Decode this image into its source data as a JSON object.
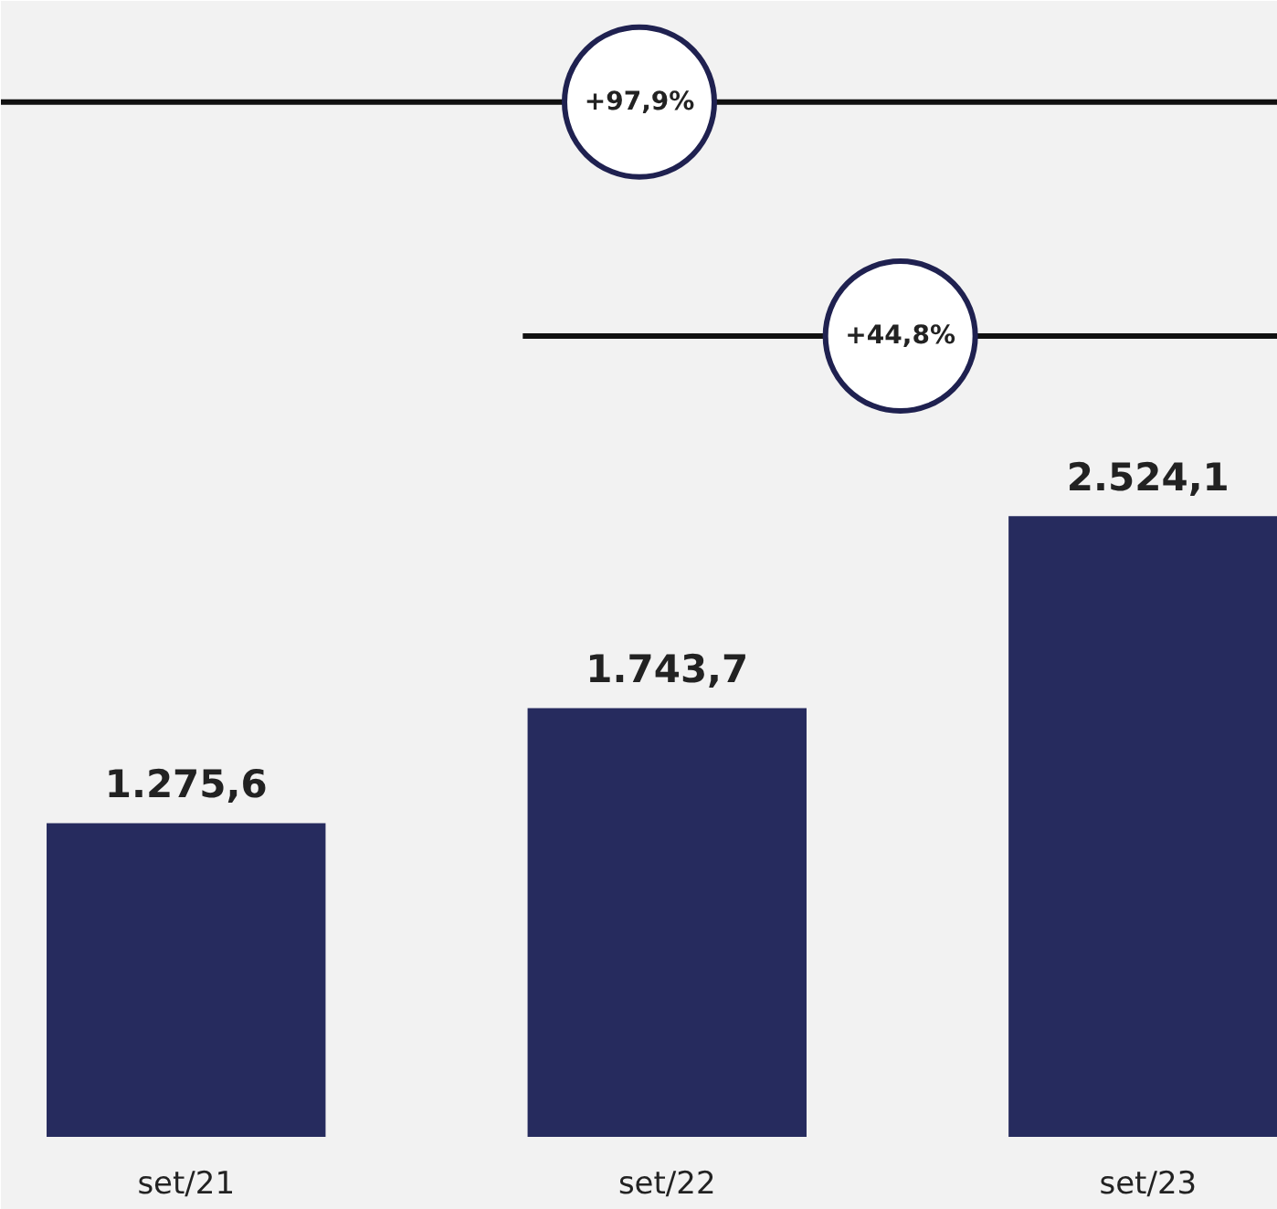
{
  "chart_data": {
    "type": "bar",
    "categories": [
      "set/21",
      "set/22",
      "set/23"
    ],
    "values": [
      1275.6,
      1743.7,
      2524.1
    ],
    "color": "#262b5e",
    "value_labels": [
      "1.275,6",
      "1.743,7",
      "2.524,1"
    ],
    "annotations": [
      "+97,9%",
      "+44,8%"
    ]
  }
}
